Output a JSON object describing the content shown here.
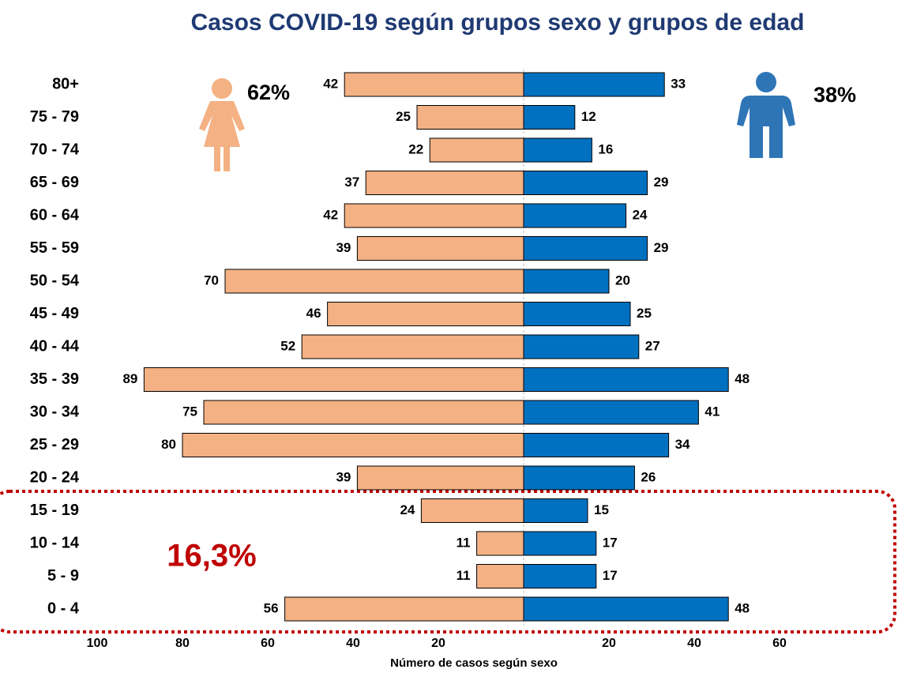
{
  "chart_data": {
    "type": "pyramid",
    "title": "Casos COVID-19 según grupos sexo y grupos de edad",
    "xlabel": "Número de casos según sexo",
    "categories": [
      "80+",
      "75 - 79",
      "70 - 74",
      "65 - 69",
      "60 - 64",
      "55 - 59",
      "50 - 54",
      "45 - 49",
      "40 - 44",
      "35 - 39",
      "30 - 34",
      "25 - 29",
      "20 - 24",
      "15 - 19",
      "10 - 14",
      "5 - 9",
      "0 - 4"
    ],
    "series": [
      {
        "side": "left",
        "color": "#f4b183",
        "share": "62%",
        "values": [
          42,
          25,
          22,
          37,
          42,
          39,
          70,
          46,
          52,
          89,
          75,
          80,
          39,
          24,
          11,
          11,
          56
        ]
      },
      {
        "side": "right",
        "color": "#0070c0",
        "share": "38%",
        "values": [
          33,
          12,
          16,
          29,
          24,
          29,
          20,
          25,
          27,
          48,
          41,
          34,
          26,
          15,
          17,
          17,
          48
        ]
      }
    ],
    "xlim": [
      0,
      100
    ],
    "xticks_left": [
      100,
      80,
      60,
      40,
      20
    ],
    "xticks_right": [
      20,
      40,
      60
    ],
    "annotation": "16,3%"
  }
}
